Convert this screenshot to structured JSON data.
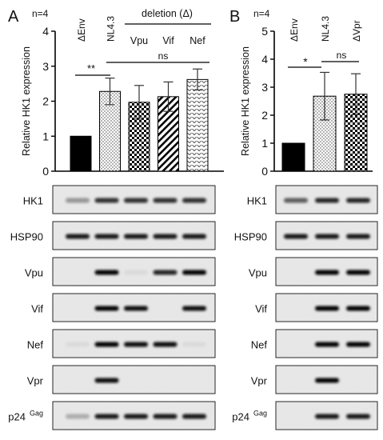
{
  "panel_a": {
    "letter": "A",
    "n_label": "n=4",
    "deletion_label": "deletion (Δ)",
    "sig": {
      "env_vs_nl": "**",
      "nl_vs_deletions": "ns"
    },
    "blot_rows": [
      "HK1",
      "HSP90",
      "Vpu",
      "Vif",
      "Nef",
      "Vpr",
      "p24"
    ],
    "blot_row_superscripts": {
      "p24": "Gag"
    },
    "blot_presence": {
      "HK1": [
        0.35,
        0.8,
        0.8,
        0.8,
        0.8
      ],
      "HSP90": [
        0.9,
        0.9,
        0.9,
        0.9,
        0.9
      ],
      "Vpu": [
        0,
        1,
        0.05,
        0.85,
        1
      ],
      "Vif": [
        0,
        1,
        0.95,
        0,
        0.95
      ],
      "Nef": [
        0.05,
        1,
        0.95,
        0.95,
        0.05
      ],
      "Vpr": [
        0,
        0.95,
        0,
        0,
        0
      ],
      "p24": [
        0.25,
        0.9,
        0.9,
        0.9,
        0.9
      ]
    }
  },
  "panel_b": {
    "letter": "B",
    "n_label": "n=4",
    "sig": {
      "env_vs_nl": "*",
      "nl_vs_vpr": "ns"
    },
    "blot_rows": [
      "HK1",
      "HSP90",
      "Vpu",
      "Vif",
      "Nef",
      "Vpr",
      "p24"
    ],
    "blot_row_superscripts": {
      "p24": "Gag"
    },
    "blot_presence": {
      "HK1": [
        0.6,
        0.85,
        0.85
      ],
      "HSP90": [
        0.9,
        0.9,
        0.9
      ],
      "Vpu": [
        0,
        1,
        1
      ],
      "Vif": [
        0,
        1,
        1
      ],
      "Nef": [
        0,
        1,
        1
      ],
      "Vpr": [
        0,
        1,
        0
      ],
      "p24": [
        0,
        0.9,
        0.9
      ]
    }
  },
  "chart_data": [
    {
      "type": "bar",
      "categories": [
        "ΔEnv",
        "NL4.3",
        "Vpu",
        "Vif",
        "Nef"
      ],
      "values": [
        1.0,
        2.28,
        1.97,
        2.13,
        2.62
      ],
      "errors": [
        0,
        0.38,
        0.48,
        0.42,
        0.3
      ],
      "patterns": [
        "solid",
        "dots",
        "checker",
        "diagonal",
        "chevron"
      ],
      "ylabel": "Relative HK1 expression",
      "ylim": [
        0,
        4
      ],
      "yticks": [
        0,
        1,
        2,
        3,
        4
      ]
    },
    {
      "type": "bar",
      "categories": [
        "ΔEnv",
        "NL4.3",
        "ΔVpr"
      ],
      "values": [
        1.0,
        2.68,
        2.75
      ],
      "errors": [
        0,
        0.85,
        0.73
      ],
      "patterns": [
        "solid",
        "dots",
        "checker"
      ],
      "ylabel": "Relative HK1 expression",
      "ylim": [
        0,
        5
      ],
      "yticks": [
        0,
        1,
        2,
        3,
        4,
        5
      ]
    }
  ]
}
